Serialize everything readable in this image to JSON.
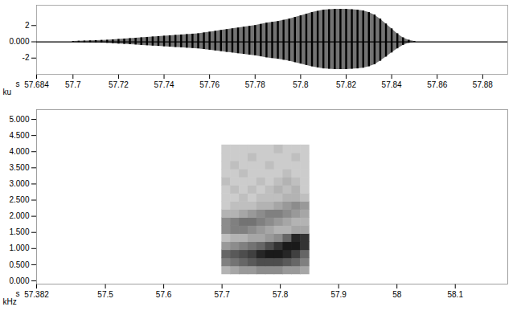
{
  "chart_data": [
    {
      "type": "waveform",
      "xlabel": "s",
      "ylabel": "ku",
      "xlim": [
        57.684,
        57.891
      ],
      "xticks": [
        57.684,
        57.7,
        57.72,
        57.74,
        57.76,
        57.78,
        57.8,
        57.82,
        57.84,
        57.86,
        57.88
      ],
      "ylim": [
        -4,
        4.5
      ],
      "yticks": [
        2,
        {
          "value": 0,
          "label": "0.000"
        },
        -2
      ],
      "grid": false,
      "color": "#000000",
      "x": [
        57.7,
        57.7025,
        57.705,
        57.7075,
        57.71,
        57.7125,
        57.715,
        57.7175,
        57.72,
        57.7225,
        57.725,
        57.7275,
        57.73,
        57.7325,
        57.735,
        57.7375,
        57.74,
        57.7425,
        57.745,
        57.7475,
        57.75,
        57.7525,
        57.755,
        57.7575,
        57.76,
        57.7625,
        57.765,
        57.7675,
        57.77,
        57.7725,
        57.775,
        57.7775,
        57.78,
        57.7825,
        57.785,
        57.7875,
        57.79,
        57.7925,
        57.795,
        57.7975,
        57.8,
        57.8025,
        57.805,
        57.8075,
        57.81,
        57.8125,
        57.815,
        57.8175,
        57.82,
        57.8225,
        57.825,
        57.8275,
        57.83,
        57.8325,
        57.835,
        57.8375,
        57.84,
        57.8425,
        57.845,
        57.8475,
        57.85
      ],
      "upper": [
        0.05,
        0.08,
        0.1,
        0.12,
        0.15,
        0.18,
        0.2,
        0.25,
        0.3,
        0.35,
        0.4,
        0.45,
        0.5,
        0.55,
        0.6,
        0.65,
        0.7,
        0.75,
        0.8,
        0.85,
        0.9,
        0.95,
        1.0,
        1.1,
        1.2,
        1.3,
        1.4,
        1.5,
        1.6,
        1.7,
        1.8,
        1.9,
        2.0,
        2.15,
        2.3,
        2.4,
        2.5,
        2.65,
        2.8,
        3.0,
        3.2,
        3.4,
        3.6,
        3.75,
        3.9,
        3.95,
        4.0,
        4.0,
        4.0,
        3.95,
        3.9,
        3.8,
        3.6,
        3.3,
        2.8,
        2.2,
        1.6,
        1.0,
        0.5,
        0.2,
        0.05
      ],
      "lower": [
        -0.05,
        -0.07,
        -0.09,
        -0.1,
        -0.13,
        -0.15,
        -0.17,
        -0.21,
        -0.26,
        -0.3,
        -0.34,
        -0.38,
        -0.43,
        -0.47,
        -0.51,
        -0.55,
        -0.6,
        -0.64,
        -0.68,
        -0.72,
        -0.77,
        -0.81,
        -0.85,
        -0.94,
        -1.02,
        -1.1,
        -1.19,
        -1.28,
        -1.36,
        -1.45,
        -1.53,
        -1.62,
        -1.7,
        -1.83,
        -1.96,
        -2.04,
        -2.13,
        -2.25,
        -2.38,
        -2.55,
        -2.72,
        -2.89,
        -3.06,
        -3.19,
        -3.32,
        -3.36,
        -3.4,
        -3.4,
        -3.4,
        -3.36,
        -3.32,
        -3.23,
        -3.06,
        -2.81,
        -2.38,
        -1.87,
        -1.36,
        -0.85,
        -0.43,
        -0.17,
        -0.04
      ]
    },
    {
      "type": "heatmap",
      "xlabel": "s",
      "ylabel": "kHz",
      "xlim": [
        57.382,
        58.19
      ],
      "xticks": [
        57.382,
        57.5,
        57.6,
        57.7,
        57.8,
        57.9,
        58,
        58.1
      ],
      "ylim": [
        -0.1,
        5.3
      ],
      "yticks": [
        {
          "value": 0,
          "label": "0.000"
        },
        {
          "value": 0.5,
          "label": "0.500"
        },
        {
          "value": 1,
          "label": "1.000"
        },
        {
          "value": 1.5,
          "label": "1.500"
        },
        {
          "value": 2,
          "label": "2.000"
        },
        {
          "value": 2.5,
          "label": "2.500"
        },
        {
          "value": 3,
          "label": "3.000"
        },
        {
          "value": 3.5,
          "label": "3.500"
        },
        {
          "value": 4,
          "label": "4.000"
        },
        {
          "value": 4.5,
          "label": "4.500"
        },
        {
          "value": 5,
          "label": "5.000"
        }
      ],
      "grid": false,
      "colors": [
        "#ffffff",
        "#000000"
      ],
      "intensity_range": [
        0,
        1
      ],
      "time_bins": [
        57.7,
        57.715,
        57.73,
        57.745,
        57.76,
        57.775,
        57.79,
        57.805,
        57.82,
        57.835,
        57.85
      ],
      "freq_bins": [
        0.2,
        0.45,
        0.7,
        0.95,
        1.2,
        1.45,
        1.7,
        1.95,
        2.2,
        2.45,
        2.7,
        2.95,
        3.2,
        3.45,
        3.7,
        3.95,
        4.2
      ],
      "cells": [
        [
          0.3,
          0.35,
          0.4,
          0.4,
          0.45,
          0.45,
          0.45,
          0.4,
          0.4,
          0.35
        ],
        [
          0.5,
          0.55,
          0.6,
          0.65,
          0.7,
          0.7,
          0.7,
          0.65,
          0.6,
          0.5
        ],
        [
          0.6,
          0.65,
          0.7,
          0.75,
          0.85,
          0.9,
          0.9,
          0.85,
          0.75,
          0.6
        ],
        [
          0.4,
          0.45,
          0.5,
          0.55,
          0.6,
          0.7,
          0.8,
          0.9,
          0.9,
          0.8
        ],
        [
          0.25,
          0.3,
          0.3,
          0.35,
          0.35,
          0.4,
          0.45,
          0.6,
          0.85,
          0.8
        ],
        [
          0.45,
          0.5,
          0.5,
          0.45,
          0.4,
          0.35,
          0.3,
          0.3,
          0.35,
          0.35
        ],
        [
          0.45,
          0.5,
          0.55,
          0.55,
          0.5,
          0.45,
          0.4,
          0.35,
          0.3,
          0.3
        ],
        [
          0.3,
          0.3,
          0.35,
          0.4,
          0.45,
          0.5,
          0.5,
          0.45,
          0.4,
          0.35
        ],
        [
          0.2,
          0.25,
          0.25,
          0.25,
          0.3,
          0.3,
          0.35,
          0.4,
          0.45,
          0.4
        ],
        [
          0.2,
          0.2,
          0.25,
          0.2,
          0.25,
          0.25,
          0.25,
          0.3,
          0.3,
          0.25
        ],
        [
          0.2,
          0.25,
          0.2,
          0.25,
          0.2,
          0.25,
          0.3,
          0.25,
          0.3,
          0.2
        ],
        [
          0.25,
          0.2,
          0.2,
          0.2,
          0.25,
          0.2,
          0.25,
          0.3,
          0.25,
          0.2
        ],
        [
          0.2,
          0.2,
          0.25,
          0.2,
          0.2,
          0.2,
          0.2,
          0.25,
          0.2,
          0.2
        ],
        [
          0.2,
          0.25,
          0.2,
          0.2,
          0.2,
          0.25,
          0.2,
          0.2,
          0.2,
          0.2
        ],
        [
          0.2,
          0.2,
          0.2,
          0.25,
          0.2,
          0.2,
          0.2,
          0.2,
          0.25,
          0.2
        ],
        [
          0.2,
          0.2,
          0.2,
          0.2,
          0.2,
          0.2,
          0.25,
          0.2,
          0.2,
          0.2
        ]
      ]
    }
  ]
}
